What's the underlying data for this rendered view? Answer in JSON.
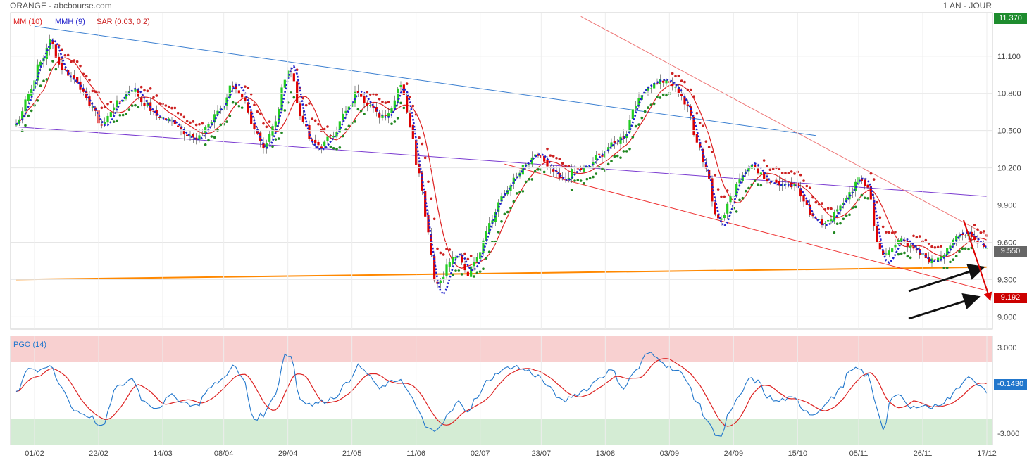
{
  "header": {
    "title": "ORANGE - abcbourse.com",
    "period": "1 AN - JOUR"
  },
  "legend": {
    "mm": "MM (10)",
    "mmh": "MMH (9)",
    "sar": "SAR (0.03, 0.2)",
    "pgo": "PGO (14)"
  },
  "badges": {
    "top": "11.370",
    "last": "9.550",
    "target": "9.192",
    "pgo_last": "-0.1430"
  },
  "colors": {
    "up_candle": "#22cc22",
    "down_candle": "#dd0000",
    "mm": "#dd2222",
    "mmh": "#2222cc",
    "sar_up": "#228822",
    "sar_down": "#cc2222",
    "pgo": "#2277cc",
    "overbought_zone": "#f8d0d0",
    "oversold_zone": "#d4ecd4",
    "support_line": "#ff8800"
  },
  "chart_data": [
    {
      "type": "candlestick",
      "title": "ORANGE - abcbourse.com",
      "period": "1 AN - JOUR",
      "ylim": [
        8.9,
        11.45
      ],
      "y_ticks": [
        "11.100",
        "10.800",
        "10.500",
        "10.200",
        "9.900",
        "9.600",
        "9.300",
        "9.000"
      ],
      "x_ticks": [
        "01/02",
        "22/02",
        "14/03",
        "08/04",
        "29/04",
        "21/05",
        "11/06",
        "02/07",
        "23/07",
        "13/08",
        "03/09",
        "24/09",
        "15/10",
        "05/11",
        "26/11",
        "17/12"
      ],
      "close_anchors": [
        [
          0,
          10.55
        ],
        [
          4,
          10.8
        ],
        [
          8,
          11.05
        ],
        [
          11,
          11.22
        ],
        [
          15,
          11.0
        ],
        [
          19,
          10.92
        ],
        [
          24,
          10.72
        ],
        [
          28,
          10.55
        ],
        [
          33,
          10.72
        ],
        [
          38,
          10.84
        ],
        [
          42,
          10.72
        ],
        [
          46,
          10.62
        ],
        [
          51,
          10.58
        ],
        [
          56,
          10.48
        ],
        [
          59,
          10.42
        ],
        [
          63,
          10.55
        ],
        [
          67,
          10.68
        ],
        [
          71,
          10.88
        ],
        [
          74,
          10.75
        ],
        [
          78,
          10.5
        ],
        [
          81,
          10.38
        ],
        [
          85,
          10.58
        ],
        [
          88,
          10.92
        ],
        [
          90,
          11.0
        ],
        [
          93,
          10.62
        ],
        [
          97,
          10.4
        ],
        [
          100,
          10.38
        ],
        [
          104,
          10.48
        ],
        [
          108,
          10.65
        ],
        [
          112,
          10.82
        ],
        [
          115,
          10.72
        ],
        [
          119,
          10.62
        ],
        [
          122,
          10.65
        ],
        [
          126,
          10.88
        ],
        [
          129,
          10.55
        ],
        [
          132,
          10.15
        ],
        [
          135,
          9.7
        ],
        [
          137,
          9.3
        ],
        [
          139,
          9.28
        ],
        [
          142,
          9.45
        ],
        [
          145,
          9.48
        ],
        [
          148,
          9.35
        ],
        [
          151,
          9.5
        ],
        [
          155,
          9.75
        ],
        [
          159,
          9.95
        ],
        [
          163,
          10.1
        ],
        [
          167,
          10.22
        ],
        [
          171,
          10.3
        ],
        [
          175,
          10.18
        ],
        [
          179,
          10.1
        ],
        [
          183,
          10.18
        ],
        [
          187,
          10.2
        ],
        [
          191,
          10.3
        ],
        [
          195,
          10.38
        ],
        [
          199,
          10.45
        ],
        [
          203,
          10.72
        ],
        [
          207,
          10.85
        ],
        [
          211,
          10.9
        ],
        [
          214,
          10.88
        ],
        [
          217,
          10.82
        ],
        [
          220,
          10.68
        ],
        [
          223,
          10.42
        ],
        [
          226,
          10.2
        ],
        [
          229,
          9.85
        ],
        [
          231,
          9.78
        ],
        [
          234,
          9.95
        ],
        [
          237,
          10.12
        ],
        [
          240,
          10.22
        ],
        [
          243,
          10.18
        ],
        [
          246,
          10.1
        ],
        [
          249,
          10.08
        ],
        [
          252,
          10.05
        ],
        [
          255,
          10.05
        ],
        [
          258,
          9.95
        ],
        [
          261,
          9.8
        ],
        [
          264,
          9.75
        ],
        [
          267,
          9.8
        ],
        [
          270,
          9.88
        ],
        [
          273,
          10.0
        ],
        [
          276,
          10.1
        ],
        [
          279,
          10.05
        ],
        [
          282,
          9.62
        ],
        [
          284,
          9.48
        ],
        [
          287,
          9.55
        ],
        [
          290,
          9.65
        ],
        [
          293,
          9.55
        ],
        [
          296,
          9.5
        ],
        [
          300,
          9.45
        ],
        [
          303,
          9.5
        ],
        [
          306,
          9.58
        ],
        [
          309,
          9.65
        ],
        [
          312,
          9.68
        ],
        [
          315,
          9.6
        ],
        [
          318,
          9.55
        ]
      ]
    },
    {
      "type": "line",
      "title": "PGO (14)",
      "ylim": [
        -3.8,
        3.8
      ],
      "y_ticks": [
        "3.000",
        "-3.000"
      ],
      "overbought": 2.0,
      "oversold": -2.0,
      "pgo_anchors": [
        [
          0,
          -0.1
        ],
        [
          4,
          1.6
        ],
        [
          8,
          1.3
        ],
        [
          11,
          1.7
        ],
        [
          15,
          0.2
        ],
        [
          19,
          -1.4
        ],
        [
          24,
          -1.8
        ],
        [
          28,
          -2.6
        ],
        [
          33,
          0.2
        ],
        [
          38,
          0.8
        ],
        [
          42,
          -0.8
        ],
        [
          46,
          -1.2
        ],
        [
          51,
          -0.4
        ],
        [
          56,
          -0.9
        ],
        [
          59,
          -1.1
        ],
        [
          63,
          0.1
        ],
        [
          67,
          0.7
        ],
        [
          71,
          1.7
        ],
        [
          74,
          0.9
        ],
        [
          78,
          -2.0
        ],
        [
          81,
          -1.7
        ],
        [
          85,
          -0.2
        ],
        [
          88,
          2.5
        ],
        [
          90,
          2.4
        ],
        [
          93,
          -0.6
        ],
        [
          97,
          -1.0
        ],
        [
          100,
          -0.8
        ],
        [
          104,
          -0.5
        ],
        [
          108,
          0.4
        ],
        [
          112,
          1.7
        ],
        [
          115,
          1.2
        ],
        [
          119,
          0.1
        ],
        [
          122,
          0.5
        ],
        [
          126,
          0.8
        ],
        [
          129,
          -0.3
        ],
        [
          132,
          -1.6
        ],
        [
          135,
          -2.7
        ],
        [
          137,
          -3.0
        ],
        [
          139,
          -2.5
        ],
        [
          142,
          -1.6
        ],
        [
          145,
          -0.8
        ],
        [
          148,
          -1.4
        ],
        [
          151,
          -0.5
        ],
        [
          155,
          0.8
        ],
        [
          159,
          1.4
        ],
        [
          163,
          1.7
        ],
        [
          167,
          1.4
        ],
        [
          171,
          1.0
        ],
        [
          175,
          0.1
        ],
        [
          179,
          -0.8
        ],
        [
          183,
          -0.3
        ],
        [
          187,
          0.1
        ],
        [
          191,
          0.9
        ],
        [
          195,
          1.4
        ],
        [
          199,
          0.2
        ],
        [
          203,
          1.4
        ],
        [
          207,
          2.6
        ],
        [
          211,
          2.2
        ],
        [
          214,
          1.6
        ],
        [
          217,
          1.4
        ],
        [
          220,
          0.5
        ],
        [
          223,
          -0.8
        ],
        [
          226,
          -2.0
        ],
        [
          229,
          -3.0
        ],
        [
          231,
          -3.2
        ],
        [
          234,
          -1.4
        ],
        [
          237,
          -0.5
        ],
        [
          240,
          0.8
        ],
        [
          243,
          0.6
        ],
        [
          246,
          -0.4
        ],
        [
          249,
          -0.8
        ],
        [
          252,
          -0.6
        ],
        [
          255,
          -0.6
        ],
        [
          258,
          -1.3
        ],
        [
          261,
          -1.7
        ],
        [
          264,
          -1.2
        ],
        [
          267,
          -0.6
        ],
        [
          270,
          0.1
        ],
        [
          273,
          1.3
        ],
        [
          276,
          1.5
        ],
        [
          279,
          1.0
        ],
        [
          282,
          -1.2
        ],
        [
          284,
          -2.7
        ],
        [
          287,
          -0.4
        ],
        [
          290,
          -0.5
        ],
        [
          293,
          -1.3
        ],
        [
          296,
          -1.0
        ],
        [
          300,
          -1.2
        ],
        [
          303,
          -0.9
        ],
        [
          306,
          -0.5
        ],
        [
          309,
          0.3
        ],
        [
          312,
          1.1
        ],
        [
          315,
          0.3
        ],
        [
          318,
          -0.1
        ]
      ]
    }
  ]
}
